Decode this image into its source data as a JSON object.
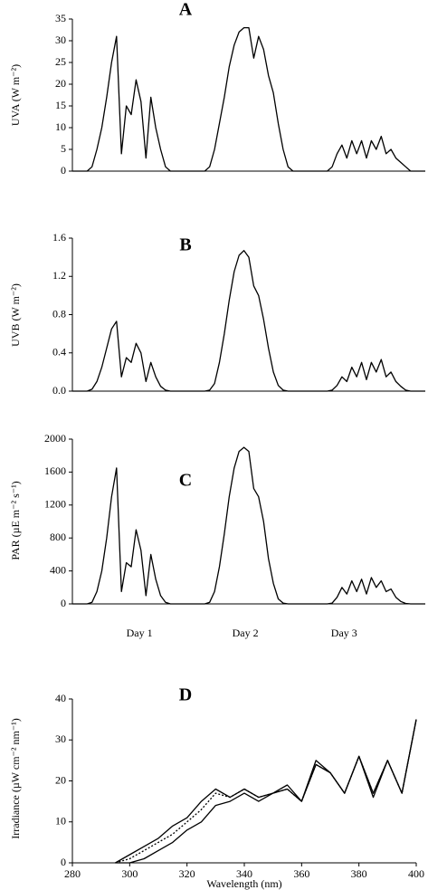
{
  "chart_data": [
    {
      "type": "line",
      "title": "A",
      "ylabel": "UVA (W m⁻²)",
      "ylim": [
        0,
        35
      ],
      "yticks": [
        0,
        5,
        10,
        15,
        20,
        25,
        30,
        35
      ],
      "series": [
        {
          "color": "#000000",
          "values": [
            0,
            0,
            0,
            0,
            1,
            5,
            10,
            17,
            25,
            31,
            4,
            15,
            13,
            21,
            16,
            3,
            17,
            10,
            5,
            1,
            0,
            0,
            0,
            0,
            0,
            0,
            0,
            0,
            1,
            5,
            11,
            17,
            24,
            29,
            32,
            33,
            33,
            26,
            31,
            28,
            22,
            18,
            11,
            5,
            1,
            0,
            0,
            0,
            0,
            0,
            0,
            0,
            0,
            1,
            4,
            6,
            3,
            7,
            4,
            7,
            3,
            7,
            5,
            8,
            4,
            5,
            3,
            2,
            1,
            0,
            0,
            0,
            0
          ]
        }
      ]
    },
    {
      "type": "line",
      "title": "B",
      "ylabel": "UVB (W m⁻²)",
      "ylim": [
        0,
        1.6
      ],
      "yticks": [
        {
          "value": 0,
          "label": "0.0"
        },
        0.4,
        0.8,
        1.2,
        1.6
      ],
      "series": [
        {
          "color": "#000000",
          "values": [
            0,
            0,
            0,
            0,
            0.02,
            0.1,
            0.25,
            0.45,
            0.65,
            0.73,
            0.15,
            0.35,
            0.3,
            0.5,
            0.4,
            0.1,
            0.3,
            0.15,
            0.05,
            0.01,
            0,
            0,
            0,
            0,
            0,
            0,
            0,
            0,
            0.01,
            0.08,
            0.3,
            0.6,
            0.95,
            1.25,
            1.42,
            1.47,
            1.4,
            1.1,
            1.0,
            0.75,
            0.45,
            0.2,
            0.06,
            0.01,
            0,
            0,
            0,
            0,
            0,
            0,
            0,
            0,
            0,
            0.01,
            0.06,
            0.15,
            0.1,
            0.25,
            0.15,
            0.3,
            0.12,
            0.3,
            0.2,
            0.33,
            0.15,
            0.2,
            0.1,
            0.05,
            0.01,
            0,
            0,
            0,
            0
          ]
        }
      ]
    },
    {
      "type": "line",
      "title": "C",
      "ylabel": "PAR (µE m⁻² s⁻¹)",
      "ylim": [
        0,
        2000
      ],
      "yticks": [
        0,
        400,
        800,
        1200,
        1600,
        2000
      ],
      "x_labels": [
        "Day 1",
        "Day 2",
        "Day 3"
      ],
      "series": [
        {
          "color": "#000000",
          "values": [
            0,
            0,
            0,
            0,
            20,
            150,
            400,
            800,
            1300,
            1650,
            150,
            500,
            450,
            900,
            650,
            100,
            600,
            300,
            100,
            20,
            0,
            0,
            0,
            0,
            0,
            0,
            0,
            0,
            20,
            150,
            450,
            850,
            1300,
            1650,
            1850,
            1900,
            1850,
            1400,
            1300,
            1000,
            550,
            250,
            60,
            10,
            0,
            0,
            0,
            0,
            0,
            0,
            0,
            0,
            0,
            10,
            80,
            200,
            120,
            280,
            150,
            300,
            120,
            320,
            200,
            280,
            150,
            180,
            80,
            30,
            5,
            0,
            0,
            0,
            0
          ]
        }
      ]
    },
    {
      "type": "line",
      "title": "D",
      "ylabel": "Irradiance (µW cm⁻² nm⁻¹)",
      "xlabel": "Wavelength (nm)",
      "xlim": [
        280,
        400
      ],
      "xticks": [
        280,
        300,
        320,
        340,
        360,
        380,
        400
      ],
      "ylim": [
        0,
        40
      ],
      "yticks": [
        0,
        10,
        20,
        30,
        40
      ],
      "x": [
        295,
        300,
        305,
        310,
        315,
        320,
        325,
        330,
        335,
        340,
        345,
        350,
        355,
        360,
        365,
        370,
        375,
        380,
        385,
        390,
        395,
        400
      ],
      "series": [
        {
          "color": "#000000",
          "values": [
            0,
            2,
            4,
            6,
            9,
            11,
            15,
            18,
            16,
            18,
            16,
            17,
            19,
            15,
            25,
            22,
            17,
            26,
            17,
            25,
            17,
            35
          ]
        },
        {
          "color": "#000000",
          "dashed": true,
          "values": [
            0,
            1,
            3,
            5,
            7,
            10,
            13,
            17,
            16,
            18,
            16,
            17,
            18,
            15,
            24,
            22,
            17,
            26,
            17,
            25,
            17,
            35
          ]
        },
        {
          "color": "#000000",
          "values": [
            0,
            0,
            1,
            3,
            5,
            8,
            10,
            14,
            15,
            17,
            15,
            17,
            18,
            15,
            24,
            22,
            17,
            26,
            16,
            25,
            17,
            35
          ]
        }
      ]
    }
  ]
}
